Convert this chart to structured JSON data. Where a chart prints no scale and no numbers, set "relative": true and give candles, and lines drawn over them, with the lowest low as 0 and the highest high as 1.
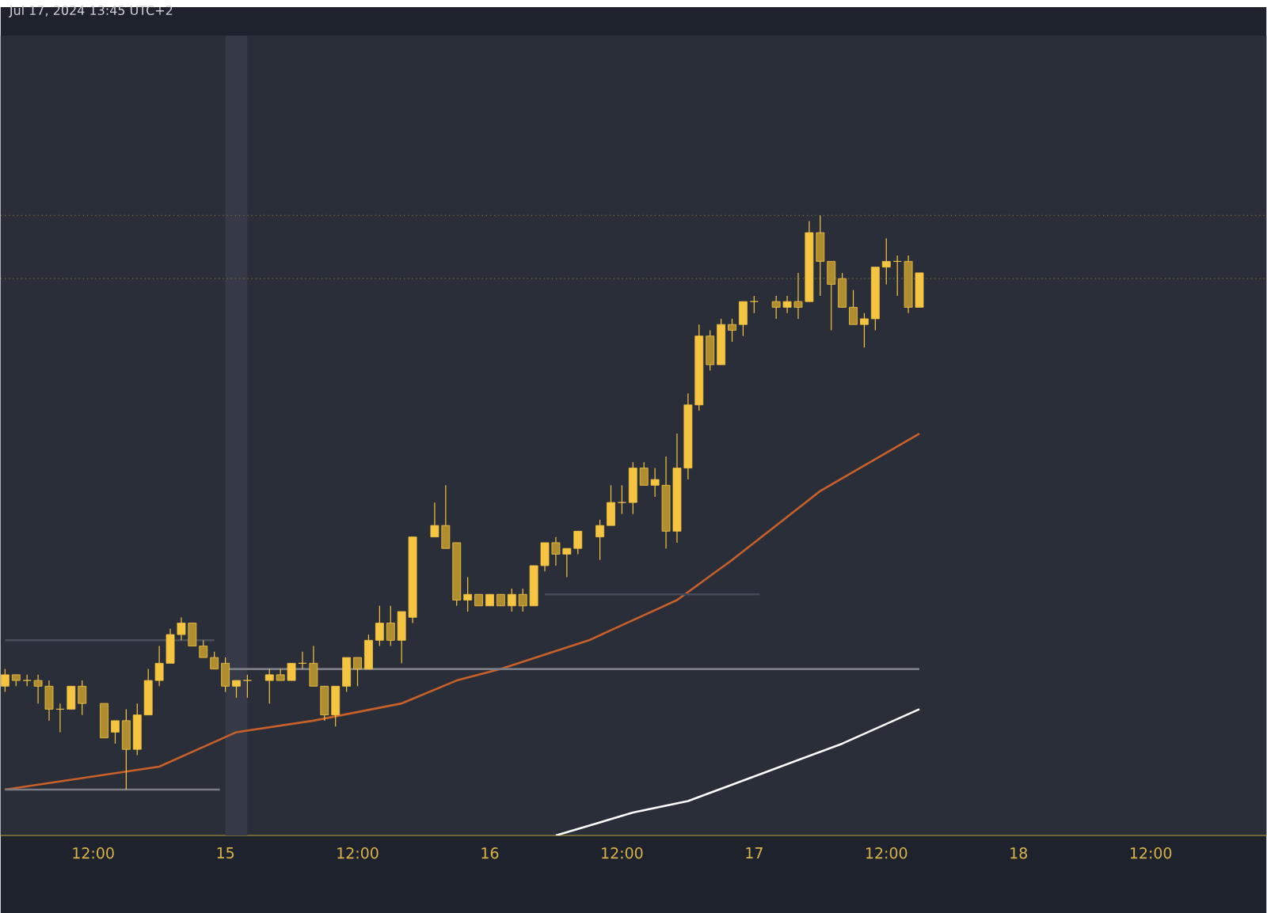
{
  "chart_data": {
    "type": "candlestick",
    "title": "Jul 17, 2024 13:45 UTC+2",
    "relative": true,
    "color": "#f5c542",
    "grid": false,
    "xlim": [
      "2024-07-14T03:36",
      "2024-07-18T22:30"
    ],
    "xticks": [
      {
        "value": "2024-07-14T12:00",
        "label": "12:00"
      },
      {
        "value": "2024-07-15T00:00",
        "label": "15"
      },
      {
        "value": "2024-07-15T12:00",
        "label": "12:00"
      },
      {
        "value": "2024-07-16T00:00",
        "label": "16"
      },
      {
        "value": "2024-07-16T12:00",
        "label": "12:00"
      },
      {
        "value": "2024-07-17T00:00",
        "label": "17"
      },
      {
        "value": "2024-07-17T12:00",
        "label": "12:00"
      },
      {
        "value": "2024-07-18T00:00",
        "label": "18"
      },
      {
        "value": "2024-07-18T12:00",
        "label": "12:00"
      }
    ],
    "x": [
      "2024-07-14T04:00",
      "2024-07-14T05:00",
      "2024-07-14T06:00",
      "2024-07-14T07:00",
      "2024-07-14T08:00",
      "2024-07-14T09:00",
      "2024-07-14T10:00",
      "2024-07-14T11:00",
      "2024-07-14T13:00",
      "2024-07-14T14:00",
      "2024-07-14T15:00",
      "2024-07-14T16:00",
      "2024-07-14T17:00",
      "2024-07-14T18:00",
      "2024-07-14T19:00",
      "2024-07-14T20:00",
      "2024-07-14T21:00",
      "2024-07-14T22:00",
      "2024-07-14T23:00",
      "2024-07-15T00:00",
      "2024-07-15T01:00",
      "2024-07-15T02:00",
      "2024-07-15T04:00",
      "2024-07-15T05:00",
      "2024-07-15T06:00",
      "2024-07-15T07:00",
      "2024-07-15T08:00",
      "2024-07-15T09:00",
      "2024-07-15T10:00",
      "2024-07-15T11:00",
      "2024-07-15T12:00",
      "2024-07-15T13:00",
      "2024-07-15T14:00",
      "2024-07-15T15:00",
      "2024-07-15T16:00",
      "2024-07-15T17:00",
      "2024-07-15T19:00",
      "2024-07-15T20:00",
      "2024-07-15T21:00",
      "2024-07-15T22:00",
      "2024-07-15T23:00",
      "2024-07-16T00:00",
      "2024-07-16T01:00",
      "2024-07-16T02:00",
      "2024-07-16T03:00",
      "2024-07-16T04:00",
      "2024-07-16T05:00",
      "2024-07-16T06:00",
      "2024-07-16T07:00",
      "2024-07-16T08:00",
      "2024-07-16T10:00",
      "2024-07-16T11:00",
      "2024-07-16T12:00",
      "2024-07-16T13:00",
      "2024-07-16T14:00",
      "2024-07-16T15:00",
      "2024-07-16T16:00",
      "2024-07-16T17:00",
      "2024-07-16T18:00",
      "2024-07-16T19:00",
      "2024-07-16T20:00",
      "2024-07-16T21:00",
      "2024-07-16T22:00",
      "2024-07-16T23:00",
      "2024-07-17T00:00",
      "2024-07-17T02:00",
      "2024-07-17T03:00",
      "2024-07-17T04:00",
      "2024-07-17T05:00",
      "2024-07-17T06:00",
      "2024-07-17T07:00",
      "2024-07-17T08:00",
      "2024-07-17T09:00",
      "2024-07-17T10:00",
      "2024-07-17T11:00",
      "2024-07-17T12:00",
      "2024-07-17T13:00",
      "2024-07-17T14:00",
      "2024-07-17T15:00"
    ],
    "ohlc": [
      [
        0.18,
        0.21,
        0.17,
        0.2
      ],
      [
        0.2,
        0.2,
        0.18,
        0.19
      ],
      [
        0.19,
        0.2,
        0.18,
        0.19
      ],
      [
        0.19,
        0.2,
        0.15,
        0.18
      ],
      [
        0.18,
        0.19,
        0.12,
        0.14
      ],
      [
        0.14,
        0.15,
        0.1,
        0.14
      ],
      [
        0.14,
        0.18,
        0.14,
        0.18
      ],
      [
        0.18,
        0.19,
        0.13,
        0.15
      ],
      [
        0.15,
        0.15,
        0.09,
        0.09
      ],
      [
        0.1,
        0.12,
        0.08,
        0.12
      ],
      [
        0.12,
        0.14,
        0,
        0.07
      ],
      [
        0.07,
        0.15,
        0.06,
        0.13
      ],
      [
        0.13,
        0.21,
        0.13,
        0.19
      ],
      [
        0.19,
        0.25,
        0.18,
        0.22
      ],
      [
        0.22,
        0.28,
        0.22,
        0.27
      ],
      [
        0.27,
        0.3,
        0.26,
        0.29
      ],
      [
        0.29,
        0.29,
        0.25,
        0.25
      ],
      [
        0.25,
        0.26,
        0.23,
        0.23
      ],
      [
        0.23,
        0.24,
        0.21,
        0.21
      ],
      [
        0.22,
        0.23,
        0.17,
        0.18
      ],
      [
        0.18,
        0.19,
        0.16,
        0.19
      ],
      [
        0.19,
        0.2,
        0.16,
        0.19
      ],
      [
        0.19,
        0.21,
        0.15,
        0.2
      ],
      [
        0.2,
        0.21,
        0.19,
        0.19
      ],
      [
        0.19,
        0.22,
        0.19,
        0.22
      ],
      [
        0.22,
        0.24,
        0.21,
        0.22
      ],
      [
        0.22,
        0.25,
        0.18,
        0.18
      ],
      [
        0.18,
        0.18,
        0.12,
        0.13
      ],
      [
        0.13,
        0.18,
        0.11,
        0.18
      ],
      [
        0.18,
        0.23,
        0.17,
        0.23
      ],
      [
        0.23,
        0.23,
        0.18,
        0.21
      ],
      [
        0.21,
        0.27,
        0.21,
        0.26
      ],
      [
        0.26,
        0.32,
        0.25,
        0.29
      ],
      [
        0.29,
        0.32,
        0.25,
        0.26
      ],
      [
        0.26,
        0.31,
        0.22,
        0.31
      ],
      [
        0.3,
        0.44,
        0.29,
        0.44
      ],
      [
        0.44,
        0.5,
        0.44,
        0.46
      ],
      [
        0.46,
        0.53,
        0.42,
        0.42
      ],
      [
        0.43,
        0.43,
        0.32,
        0.33
      ],
      [
        0.33,
        0.37,
        0.31,
        0.34
      ],
      [
        0.34,
        0.34,
        0.32,
        0.32
      ],
      [
        0.32,
        0.34,
        0.32,
        0.34
      ],
      [
        0.34,
        0.34,
        0.32,
        0.32
      ],
      [
        0.32,
        0.35,
        0.31,
        0.34
      ],
      [
        0.34,
        0.35,
        0.31,
        0.32
      ],
      [
        0.32,
        0.39,
        0.32,
        0.39
      ],
      [
        0.39,
        0.43,
        0.38,
        0.43
      ],
      [
        0.43,
        0.44,
        0.39,
        0.41
      ],
      [
        0.41,
        0.42,
        0.37,
        0.42
      ],
      [
        0.42,
        0.45,
        0.41,
        0.45
      ],
      [
        0.44,
        0.47,
        0.4,
        0.46
      ],
      [
        0.46,
        0.53,
        0.46,
        0.5
      ],
      [
        0.5,
        0.53,
        0.48,
        0.5
      ],
      [
        0.5,
        0.57,
        0.48,
        0.56
      ],
      [
        0.56,
        0.57,
        0.53,
        0.53
      ],
      [
        0.53,
        0.56,
        0.51,
        0.54
      ],
      [
        0.53,
        0.58,
        0.42,
        0.45
      ],
      [
        0.45,
        0.62,
        0.43,
        0.56
      ],
      [
        0.56,
        0.69,
        0.54,
        0.67
      ],
      [
        0.67,
        0.81,
        0.66,
        0.79
      ],
      [
        0.79,
        0.8,
        0.73,
        0.74
      ],
      [
        0.74,
        0.82,
        0.74,
        0.81
      ],
      [
        0.81,
        0.82,
        0.78,
        0.8
      ],
      [
        0.81,
        0.85,
        0.79,
        0.85
      ],
      [
        0.85,
        0.86,
        0.83,
        0.85
      ],
      [
        0.85,
        0.86,
        0.82,
        0.84
      ],
      [
        0.84,
        0.86,
        0.83,
        0.85
      ],
      [
        0.85,
        0.9,
        0.82,
        0.84
      ],
      [
        0.85,
        0.99,
        0.85,
        0.97
      ],
      [
        0.97,
        1,
        0.86,
        0.92
      ],
      [
        0.92,
        0.92,
        0.8,
        0.88
      ],
      [
        0.89,
        0.9,
        0.84,
        0.84
      ],
      [
        0.84,
        0.87,
        0.81,
        0.81
      ],
      [
        0.81,
        0.83,
        0.77,
        0.82
      ],
      [
        0.82,
        0.91,
        0.8,
        0.91
      ],
      [
        0.91,
        0.96,
        0.88,
        0.92
      ],
      [
        0.92,
        0.93,
        0.86,
        0.92
      ],
      [
        0.92,
        0.93,
        0.83,
        0.84
      ],
      [
        0.84,
        0.9,
        0.84,
        0.9
      ]
    ],
    "series": [
      {
        "type": "line",
        "color": "#c8602a",
        "x": [
          "2024-07-14T04:00",
          "2024-07-14T11:00",
          "2024-07-14T18:00",
          "2024-07-15T01:00",
          "2024-07-15T08:00",
          "2024-07-15T16:00",
          "2024-07-15T21:00",
          "2024-07-16T01:00",
          "2024-07-16T09:00",
          "2024-07-16T17:00",
          "2024-07-16T22:00",
          "2024-07-17T06:00",
          "2024-07-17T15:00"
        ],
        "values": [
          0,
          0.02,
          0.04,
          0.1,
          0.12,
          0.15,
          0.19,
          0.21,
          0.26,
          0.33,
          0.4,
          0.52,
          0.62
        ]
      },
      {
        "type": "line",
        "color": "#ffffff",
        "x": [
          "2024-07-16T06:00",
          "2024-07-16T13:00",
          "2024-07-16T18:00",
          "2024-07-17T01:00",
          "2024-07-17T08:00",
          "2024-07-17T15:00"
        ],
        "values": [
          -0.08,
          -0.04,
          -0.02,
          0.03,
          0.08,
          0.14
        ]
      },
      {
        "type": "line",
        "color": "#7b7d85",
        "x": [
          "2024-07-14T04:00",
          "2024-07-14T23:30"
        ],
        "values": [
          0,
          0
        ]
      },
      {
        "type": "line",
        "color": "#7b7d85",
        "x": [
          "2024-07-15T00:00",
          "2024-07-17T15:00"
        ],
        "values": [
          0.21,
          0.21
        ]
      },
      {
        "type": "line",
        "color": "#4a4f5c",
        "x": [
          "2024-07-14T04:00",
          "2024-07-14T23:00"
        ],
        "values": [
          0.26,
          0.26
        ]
      },
      {
        "type": "line",
        "color": "#454a57",
        "x": [
          "2024-07-16T05:00",
          "2024-07-17T00:30"
        ],
        "values": [
          0.34,
          0.34
        ]
      }
    ],
    "ref_lines": [
      {
        "axis": "y",
        "value": 1,
        "color": "#7d6f3a",
        "line_style": "dotted"
      },
      {
        "axis": "y",
        "value": 0.89,
        "color": "#7d6f3a",
        "line_style": "dotted"
      }
    ],
    "bands": [
      {
        "axis": "x",
        "from": "2024-07-15T00:00",
        "to": "2024-07-15T02:00",
        "color": "#363a47"
      }
    ]
  }
}
